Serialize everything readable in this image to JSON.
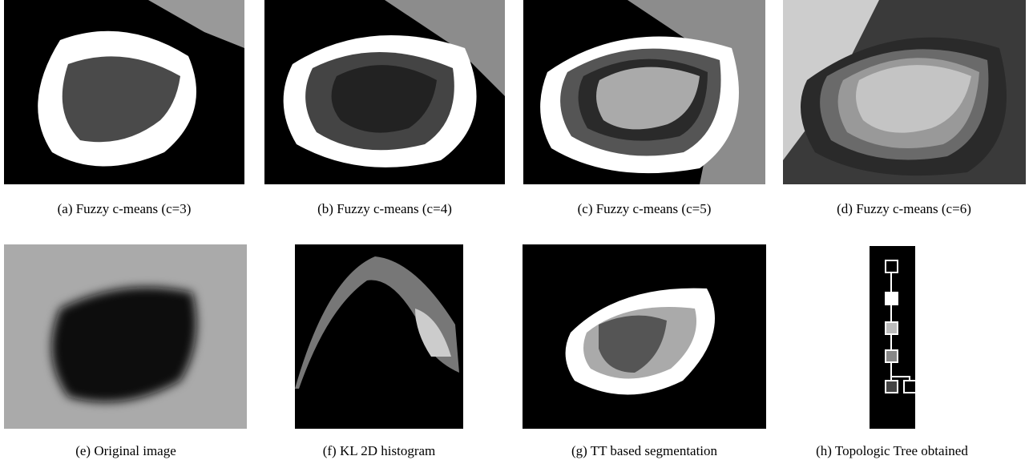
{
  "panels": [
    {
      "caption": "(a) Fuzzy c-means (c=3)"
    },
    {
      "caption": "(b) Fuzzy c-means (c=4)"
    },
    {
      "caption": "(c) Fuzzy c-means (c=5)"
    },
    {
      "caption": "(d) Fuzzy c-means (c=6)"
    },
    {
      "caption": "(e) Original image"
    },
    {
      "caption": "(f) KL 2D histogram"
    },
    {
      "caption": "(g) TT based segmentation"
    },
    {
      "caption": "(h) Topologic Tree obtained"
    }
  ]
}
